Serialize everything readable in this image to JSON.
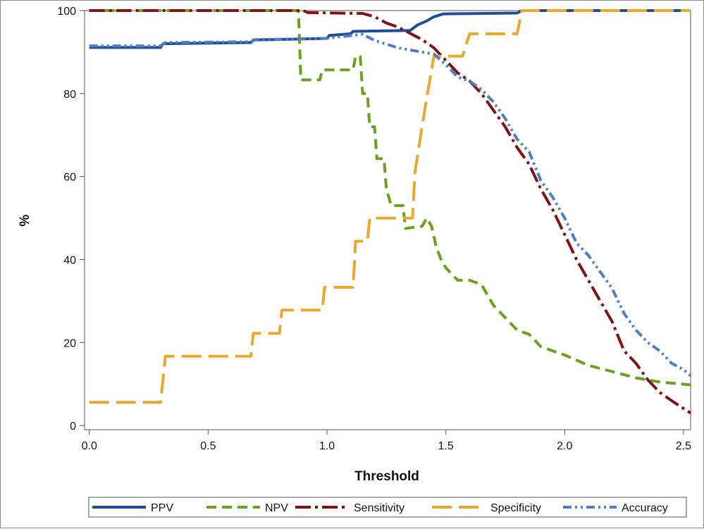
{
  "chart_data": {
    "type": "line",
    "title": "",
    "xlabel": "Threshold",
    "ylabel": "%",
    "xlim": [
      -0.02,
      2.53
    ],
    "ylim": [
      -1,
      100
    ],
    "x_ticks": [
      "0.0",
      "0.5",
      "1.0",
      "1.5",
      "2.0",
      "2.5"
    ],
    "x_tick_values": [
      0,
      0.5,
      1.0,
      1.5,
      2.0,
      2.5
    ],
    "y_ticks": [
      "0",
      "20",
      "40",
      "60",
      "80",
      "100"
    ],
    "y_tick_values": [
      0,
      20,
      40,
      60,
      80,
      100
    ],
    "grid": false,
    "legend_position": "bottom",
    "series": [
      {
        "name": "PPV",
        "color": "#1f4e96",
        "dash": "solid",
        "points": [
          [
            0,
            91.1
          ],
          [
            0.3,
            91.1
          ],
          [
            0.31,
            92
          ],
          [
            0.68,
            92.3
          ],
          [
            0.69,
            92.9
          ],
          [
            1.0,
            93.3
          ],
          [
            1.01,
            94.0
          ],
          [
            1.1,
            94.4
          ],
          [
            1.11,
            95.0
          ],
          [
            1.35,
            95.2
          ],
          [
            1.38,
            96.5
          ],
          [
            1.42,
            97.5
          ],
          [
            1.45,
            98.5
          ],
          [
            1.49,
            99.2
          ],
          [
            1.8,
            99.4
          ],
          [
            1.82,
            100
          ],
          [
            2.53,
            100
          ]
        ]
      },
      {
        "name": "NPV",
        "color": "#6aa121",
        "dash": "dashed",
        "points": [
          [
            0,
            100
          ],
          [
            0.88,
            100
          ],
          [
            0.89,
            83.3
          ],
          [
            0.97,
            83.3
          ],
          [
            0.98,
            85.7
          ],
          [
            1.11,
            85.7
          ],
          [
            1.12,
            89
          ],
          [
            1.14,
            88.9
          ],
          [
            1.15,
            80
          ],
          [
            1.17,
            80
          ],
          [
            1.18,
            72
          ],
          [
            1.2,
            72
          ],
          [
            1.21,
            64.3
          ],
          [
            1.24,
            64.3
          ],
          [
            1.25,
            57
          ],
          [
            1.27,
            53
          ],
          [
            1.32,
            53
          ],
          [
            1.33,
            47.5
          ],
          [
            1.4,
            48
          ],
          [
            1.42,
            50
          ],
          [
            1.44,
            48
          ],
          [
            1.46,
            43
          ],
          [
            1.48,
            40
          ],
          [
            1.5,
            38
          ],
          [
            1.55,
            35
          ],
          [
            1.6,
            35
          ],
          [
            1.65,
            34
          ],
          [
            1.7,
            29
          ],
          [
            1.75,
            26
          ],
          [
            1.8,
            23
          ],
          [
            1.85,
            22
          ],
          [
            1.9,
            19
          ],
          [
            2.0,
            17
          ],
          [
            2.1,
            14.5
          ],
          [
            2.2,
            13
          ],
          [
            2.3,
            11.5
          ],
          [
            2.4,
            10.5
          ],
          [
            2.53,
            9.8
          ]
        ]
      },
      {
        "name": "Sensitivity",
        "color": "#7f1416",
        "dash": "dashdot",
        "points": [
          [
            0,
            100
          ],
          [
            0.9,
            100
          ],
          [
            0.92,
            99.5
          ],
          [
            1.15,
            99.3
          ],
          [
            1.2,
            98.5
          ],
          [
            1.25,
            97
          ],
          [
            1.3,
            96
          ],
          [
            1.35,
            94.5
          ],
          [
            1.4,
            93
          ],
          [
            1.45,
            91
          ],
          [
            1.5,
            88
          ],
          [
            1.55,
            85
          ],
          [
            1.6,
            83
          ],
          [
            1.65,
            80
          ],
          [
            1.7,
            76
          ],
          [
            1.75,
            72
          ],
          [
            1.8,
            67
          ],
          [
            1.85,
            63
          ],
          [
            1.9,
            57
          ],
          [
            1.95,
            52
          ],
          [
            2.0,
            46
          ],
          [
            2.05,
            40
          ],
          [
            2.1,
            35
          ],
          [
            2.15,
            30
          ],
          [
            2.2,
            25
          ],
          [
            2.25,
            18
          ],
          [
            2.3,
            15
          ],
          [
            2.35,
            11
          ],
          [
            2.4,
            8
          ],
          [
            2.45,
            6
          ],
          [
            2.53,
            3
          ]
        ]
      },
      {
        "name": "Specificity",
        "color": "#e8a92f",
        "dash": "longdash",
        "points": [
          [
            0,
            5.6
          ],
          [
            0.3,
            5.6
          ],
          [
            0.32,
            16.7
          ],
          [
            0.68,
            16.7
          ],
          [
            0.69,
            22.2
          ],
          [
            0.8,
            22.2
          ],
          [
            0.81,
            27.8
          ],
          [
            0.98,
            27.8
          ],
          [
            0.99,
            33.3
          ],
          [
            1.11,
            33.3
          ],
          [
            1.12,
            44.4
          ],
          [
            1.17,
            44.4
          ],
          [
            1.18,
            50
          ],
          [
            1.36,
            50
          ],
          [
            1.37,
            61
          ],
          [
            1.4,
            72
          ],
          [
            1.42,
            79
          ],
          [
            1.45,
            89
          ],
          [
            1.57,
            89
          ],
          [
            1.6,
            94.4
          ],
          [
            1.8,
            94.4
          ],
          [
            1.82,
            100
          ],
          [
            2.53,
            100
          ]
        ]
      },
      {
        "name": "Accuracy",
        "color": "#4f7fc0",
        "dash": "dashdotdot",
        "points": [
          [
            0,
            91.5
          ],
          [
            0.3,
            91.5
          ],
          [
            0.32,
            92.3
          ],
          [
            0.68,
            92.5
          ],
          [
            0.7,
            93
          ],
          [
            1.0,
            93.3
          ],
          [
            1.15,
            94.3
          ],
          [
            1.2,
            92.8
          ],
          [
            1.3,
            91
          ],
          [
            1.4,
            90
          ],
          [
            1.45,
            89.5
          ],
          [
            1.5,
            87
          ],
          [
            1.55,
            84
          ],
          [
            1.6,
            83
          ],
          [
            1.65,
            81
          ],
          [
            1.7,
            78
          ],
          [
            1.75,
            74
          ],
          [
            1.8,
            69
          ],
          [
            1.85,
            66
          ],
          [
            1.9,
            59
          ],
          [
            1.95,
            55
          ],
          [
            2.0,
            50
          ],
          [
            2.05,
            44
          ],
          [
            2.1,
            41
          ],
          [
            2.15,
            37
          ],
          [
            2.2,
            33
          ],
          [
            2.25,
            27
          ],
          [
            2.3,
            23
          ],
          [
            2.35,
            20
          ],
          [
            2.4,
            18
          ],
          [
            2.45,
            15
          ],
          [
            2.5,
            13.5
          ],
          [
            2.53,
            12
          ]
        ]
      }
    ]
  }
}
